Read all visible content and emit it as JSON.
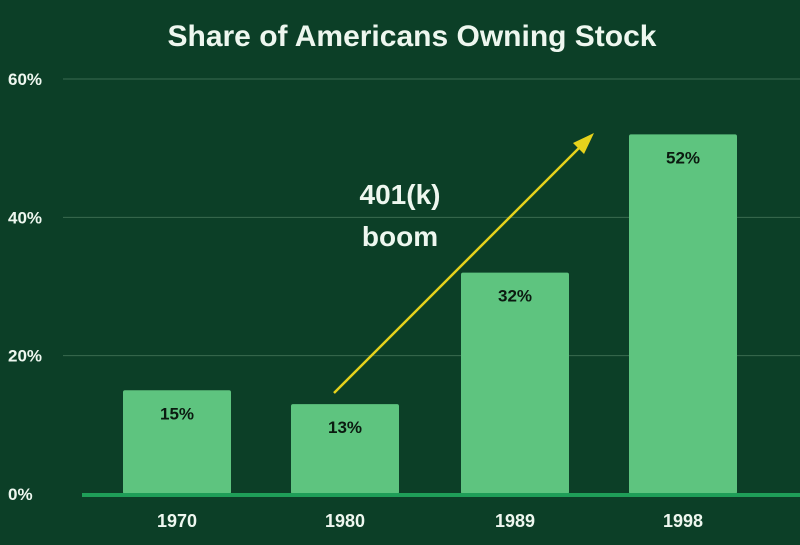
{
  "chart_data": {
    "type": "bar",
    "title": "Share of Americans Owning Stock",
    "categories": [
      "1970",
      "1980",
      "1989",
      "1998"
    ],
    "values": [
      15,
      13,
      32,
      52
    ],
    "data_labels": [
      "15%",
      "13%",
      "32%",
      "52%"
    ],
    "xlabel": "",
    "ylabel": "",
    "ylim": [
      0,
      60
    ],
    "yticks": [
      0,
      20,
      40,
      60
    ],
    "ytick_labels": [
      "0%",
      "20%",
      "40%",
      "60%"
    ],
    "grid": true,
    "annotation": {
      "lines": [
        "401(k)",
        "boom"
      ],
      "arrow_from": "1980",
      "arrow_to": "1998"
    },
    "colors": {
      "background": "#0c3f27",
      "bar": "#5ec47f",
      "baseline": "#1f9e58",
      "grid": "#3a6b50",
      "arrow": "#e6d21c",
      "text": "#eef7ef",
      "label": "#0b1a10"
    }
  }
}
